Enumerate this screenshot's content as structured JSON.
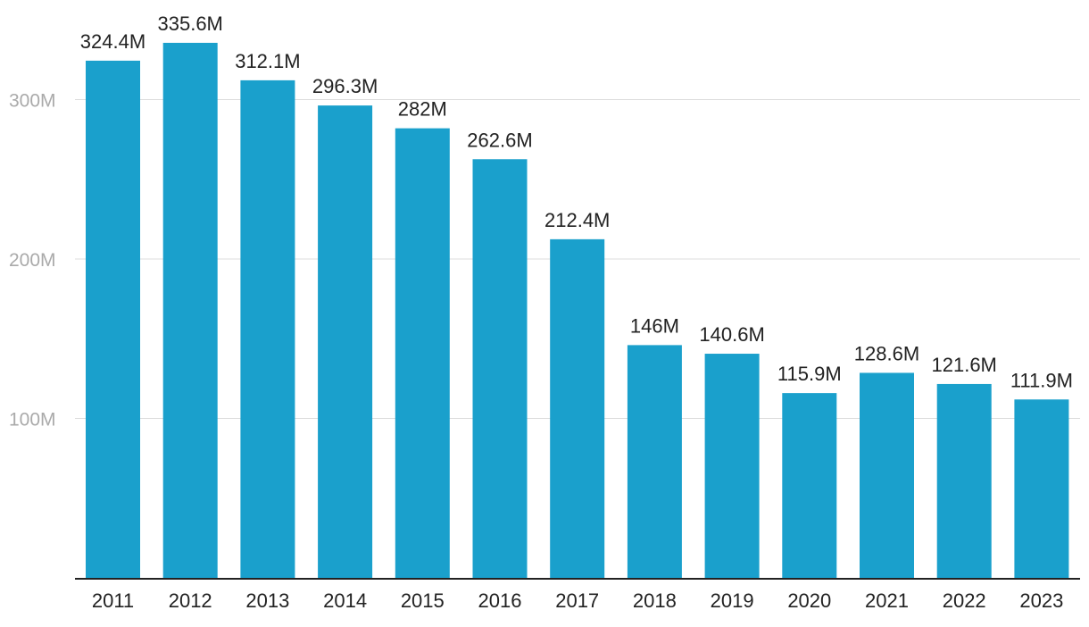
{
  "chart_data": {
    "type": "bar",
    "title": "",
    "xlabel": "",
    "ylabel": "",
    "color": "#1aa0cc",
    "categories": [
      "2011",
      "2012",
      "2013",
      "2014",
      "2015",
      "2016",
      "2017",
      "2018",
      "2019",
      "2020",
      "2021",
      "2022",
      "2023"
    ],
    "values": [
      324.4,
      335.6,
      312.1,
      296.3,
      282,
      262.6,
      212.4,
      146,
      140.6,
      115.9,
      128.6,
      121.6,
      111.9
    ],
    "value_labels": [
      "324.4M",
      "335.6M",
      "312.1M",
      "296.3M",
      "282M",
      "262.6M",
      "212.4M",
      "146M",
      "140.6M",
      "115.9M",
      "128.6M",
      "121.6M",
      "111.9M"
    ],
    "ylim": [
      0,
      360
    ],
    "y_ticks": [
      100,
      200,
      300
    ],
    "y_tick_labels": [
      "100M",
      "200M",
      "300M"
    ],
    "grid": true
  }
}
